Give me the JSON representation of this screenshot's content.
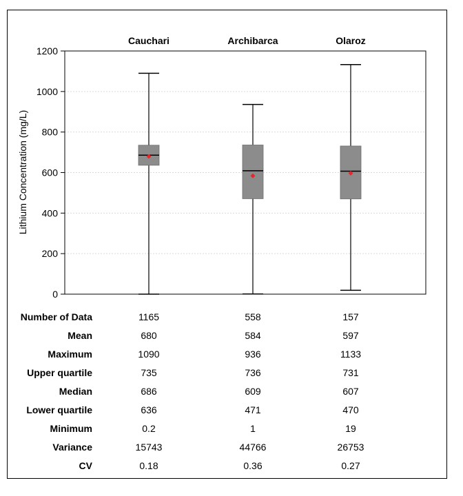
{
  "chart_data": {
    "type": "box",
    "ylabel": "Lithium Concentration (mg/L)",
    "ylim": [
      0,
      1200
    ],
    "yticks": [
      0,
      200,
      400,
      600,
      800,
      1000,
      1200
    ],
    "grid": true,
    "categories": [
      "Cauchari",
      "Archibarca",
      "Olaroz"
    ],
    "boxes": [
      {
        "name": "Cauchari",
        "min": 0.2,
        "q1": 636,
        "median": 686,
        "q3": 735,
        "max": 1090,
        "mean": 680
      },
      {
        "name": "Archibarca",
        "min": 1,
        "q1": 471,
        "median": 609,
        "q3": 736,
        "max": 936,
        "mean": 584
      },
      {
        "name": "Olaroz",
        "min": 19,
        "q1": 470,
        "median": 607,
        "q3": 731,
        "max": 1133,
        "mean": 597
      }
    ],
    "colors": {
      "box_fill": "#8c8c8c",
      "mean_marker": "#e8262b",
      "line": "#000000",
      "grid": "#d9d9d9"
    },
    "table": {
      "rows": [
        {
          "label": "Number of Data",
          "values": [
            "1165",
            "558",
            "157"
          ]
        },
        {
          "label": "Mean",
          "values": [
            "680",
            "584",
            "597"
          ]
        },
        {
          "label": "Maximum",
          "values": [
            "1090",
            "936",
            "1133"
          ]
        },
        {
          "label": "Upper quartile",
          "values": [
            "735",
            "736",
            "731"
          ]
        },
        {
          "label": "Median",
          "values": [
            "686",
            "609",
            "607"
          ]
        },
        {
          "label": "Lower quartile",
          "values": [
            "636",
            "471",
            "470"
          ]
        },
        {
          "label": "Minimum",
          "values": [
            "0.2",
            "1",
            "19"
          ]
        },
        {
          "label": "Variance",
          "values": [
            "15743",
            "44766",
            "26753"
          ]
        },
        {
          "label": "CV",
          "values": [
            "0.18",
            "0.36",
            "0.27"
          ]
        }
      ]
    }
  }
}
